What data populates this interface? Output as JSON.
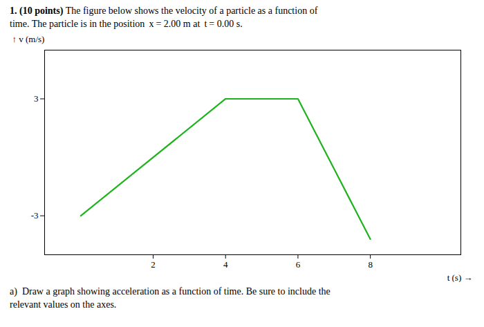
{
  "chart_data": {
    "type": "line",
    "title": "1. (10 points)",
    "subtitle": "The figure below shows the velocity of a particle as a function of\ntime. The particle is in the position  x = 2.00 m at  t = 0.00 s.",
    "xlabel": "t (s)",
    "ylabel": "v (m/s)",
    "x": [
      0,
      4,
      6,
      8
    ],
    "values": [
      -3,
      3,
      3,
      -4.2
    ],
    "color": "#1db31d",
    "xlim": [
      -1.0,
      10.5
    ],
    "ylim": [
      -5.0,
      5.5
    ],
    "xticks": [
      2,
      4,
      6,
      8
    ],
    "yticks": [
      -3,
      3
    ],
    "grid": false,
    "annotations": [
      "a)  Draw a graph showing acceleration as a function of time. Be sure to include the\nrelevant values on the axes."
    ]
  }
}
